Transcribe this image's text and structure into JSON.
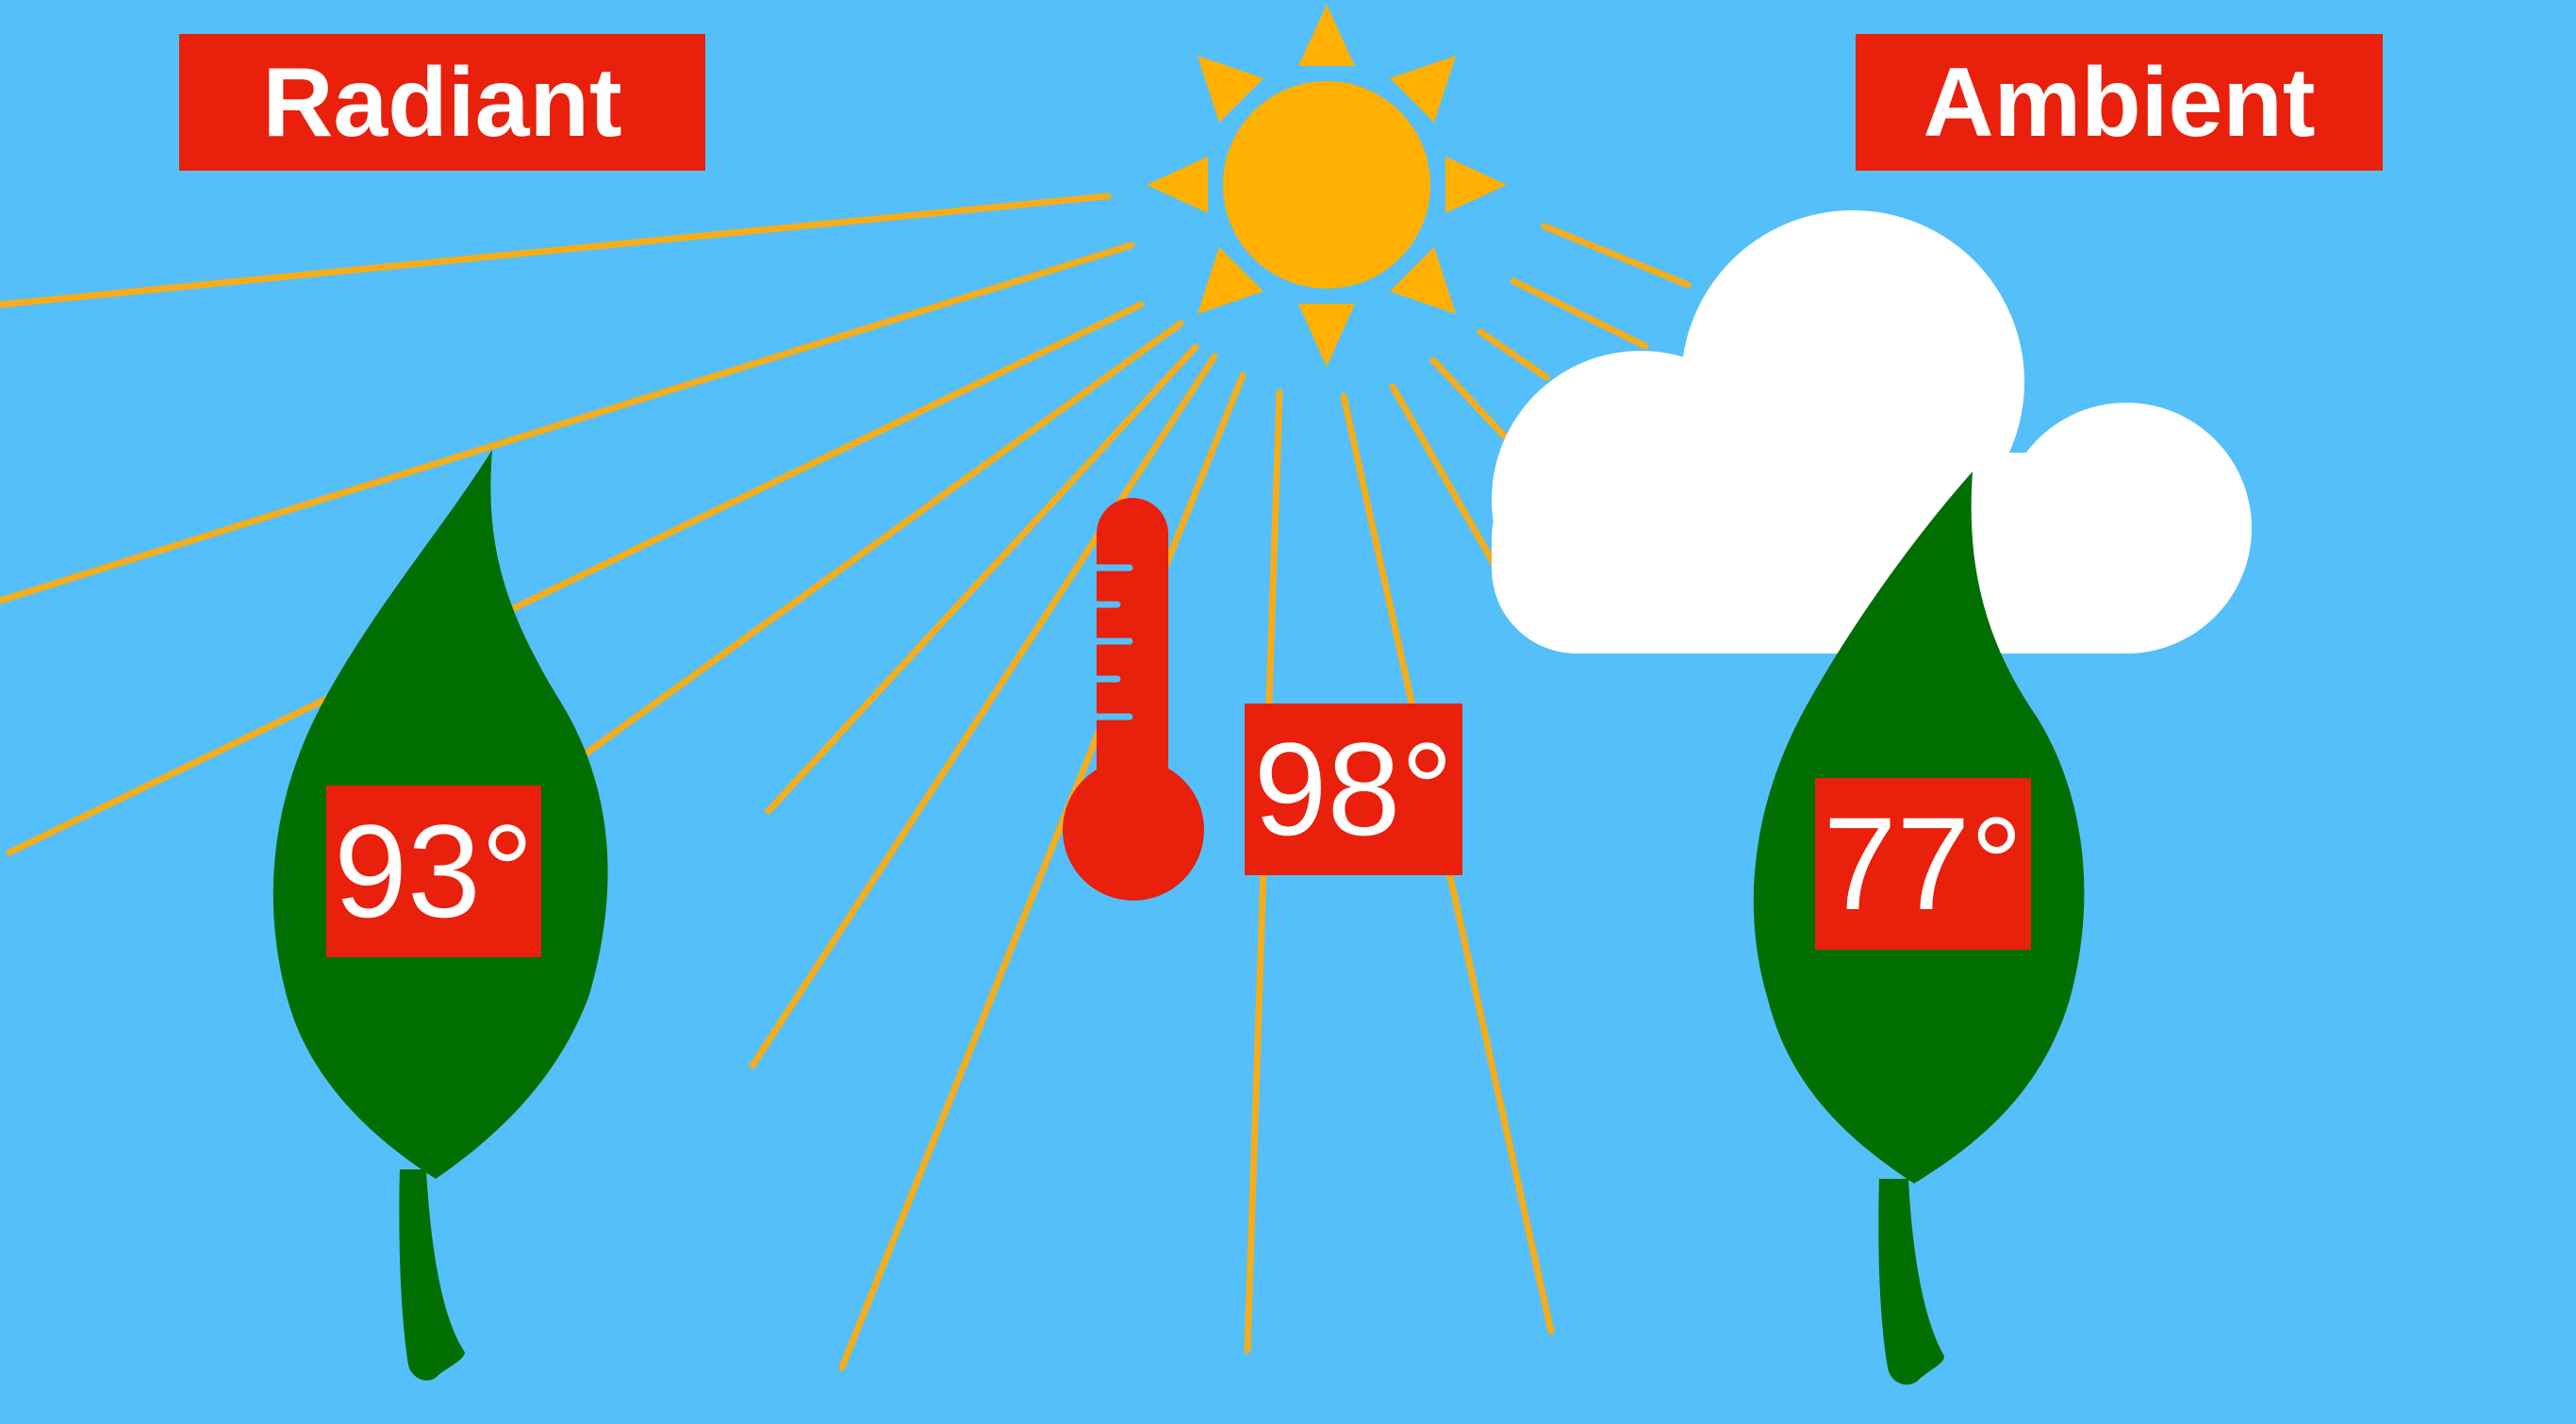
{
  "labels": {
    "radiant": "Radiant",
    "ambient": "Ambient"
  },
  "temperatures": {
    "radiant_leaf": "93°",
    "thermometer": "98°",
    "ambient_leaf": "77°"
  },
  "colors": {
    "sky": "#55bff9",
    "sun": "#ffb000",
    "rays": "#f5ad1b",
    "cloud": "#ffffff",
    "leaf": "#006e00",
    "label_background": "#e8200c",
    "label_text": "#ffffff",
    "thermometer": "#e8200c",
    "thermometer_ticks": "#55bff9"
  },
  "icons": {
    "sun": "sun-icon",
    "cloud": "cloud-icon",
    "thermometer": "thermometer-icon",
    "leaf": "leaf-icon"
  }
}
